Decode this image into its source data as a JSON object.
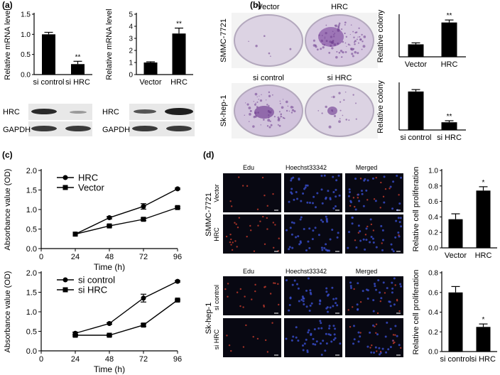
{
  "panel_labels": [
    "(a)",
    "(b)",
    "(c)",
    "(d)"
  ],
  "colors": {
    "bar": "#000000",
    "dish": "#d9cfe0",
    "stain": "#6b3b8c",
    "micro_bg": "#080812",
    "edu_dot": "#c0392b",
    "hoechst_dot": "#3a4fd0"
  },
  "blot": {
    "left_labels": [
      "HRC",
      "GAPDH"
    ],
    "right_labels": [
      "HRC",
      "GAPDH"
    ]
  },
  "colony_images": {
    "top_row_label": "SMMC-7721",
    "bottom_row_label": "Sk-hep-1",
    "top_dish_labels": [
      "Vector",
      "HRC"
    ],
    "bottom_dish_labels": [
      "si control",
      "si HRC"
    ]
  },
  "micro": {
    "column_headers": [
      "Edu",
      "Hoechst33342",
      "Merged"
    ],
    "group_top": "SMMC-7721",
    "group_bottom": "Sk-hep-1",
    "row_labels_top": [
      "Vector",
      "HRC"
    ],
    "row_labels_bottom": [
      "si control",
      "si HRC"
    ]
  },
  "chart_data": [
    {
      "id": "a_left",
      "type": "bar",
      "categories": [
        "si control",
        "si HRC"
      ],
      "values": [
        1.0,
        0.26
      ],
      "errors": [
        0.05,
        0.07
      ],
      "ylabel": "Relative mRNA level",
      "ylim": [
        0,
        1.5
      ],
      "yticks": [
        "0.0",
        "0.5",
        "1.0",
        "1.5"
      ],
      "significance": [
        "",
        "**"
      ]
    },
    {
      "id": "a_right",
      "type": "bar",
      "categories": [
        "Vector",
        "HRC"
      ],
      "values": [
        1.0,
        3.4
      ],
      "errors": [
        0.06,
        0.45
      ],
      "ylabel": "Relative mRNA level",
      "ylim": [
        0,
        5
      ],
      "yticks": [
        "0",
        "1",
        "2",
        "3",
        "4",
        "5"
      ],
      "significance": [
        "",
        "**"
      ]
    },
    {
      "id": "b_top",
      "type": "bar",
      "categories": [
        "Vector",
        "HRC"
      ],
      "values": [
        1.0,
        2.75
      ],
      "errors": [
        0.12,
        0.2
      ],
      "ylabel": "Relative colony",
      "ylim": [
        0,
        3.3
      ],
      "significance": [
        "",
        "**"
      ]
    },
    {
      "id": "b_bottom",
      "type": "bar",
      "categories": [
        "si control",
        "si HRC"
      ],
      "values": [
        1.0,
        0.2
      ],
      "errors": [
        0.05,
        0.04
      ],
      "ylabel": "Relative colony",
      "ylim": [
        0,
        1.2
      ],
      "significance": [
        "",
        "**"
      ]
    },
    {
      "id": "c_top",
      "type": "line",
      "x": [
        24,
        48,
        72,
        96
      ],
      "xticks": [
        "0",
        "24",
        "48",
        "72",
        "96"
      ],
      "xlim": [
        0,
        96
      ],
      "yticks": [
        "0.0",
        "0.5",
        "1.0",
        "1.5",
        "2.0"
      ],
      "ylim": [
        0,
        2
      ],
      "xlabel": "Time (h)",
      "ylabel": "Absorbance value (OD)",
      "series": [
        {
          "name": "HRC",
          "marker": "circle",
          "values": [
            0.37,
            0.79,
            1.08,
            1.53
          ],
          "errors": [
            0,
            0.03,
            0.07,
            0.02
          ]
        },
        {
          "name": "Vector",
          "marker": "square",
          "values": [
            0.37,
            0.58,
            0.75,
            1.05
          ],
          "errors": [
            0,
            0.02,
            0.03,
            0.02
          ]
        }
      ]
    },
    {
      "id": "c_bottom",
      "type": "line",
      "x": [
        24,
        48,
        72,
        96
      ],
      "xticks": [
        "0",
        "24",
        "48",
        "72",
        "96"
      ],
      "xlim": [
        0,
        96
      ],
      "yticks": [
        "0.0",
        "0.5",
        "1.0",
        "1.5",
        "2.0"
      ],
      "ylim": [
        0,
        2
      ],
      "xlabel": "Time (h)",
      "ylabel": "Absorbance value (OD)",
      "series": [
        {
          "name": "si control",
          "marker": "circle",
          "values": [
            0.45,
            0.7,
            1.35,
            1.78
          ],
          "errors": [
            0.03,
            0.02,
            0.1,
            0.02
          ]
        },
        {
          "name": "si HRC",
          "marker": "square",
          "values": [
            0.4,
            0.4,
            0.66,
            1.3
          ],
          "errors": [
            0.02,
            0.02,
            0.03,
            0.02
          ]
        }
      ]
    },
    {
      "id": "d_top",
      "type": "bar",
      "categories": [
        "Vector",
        "HRC"
      ],
      "values": [
        0.37,
        0.74
      ],
      "errors": [
        0.07,
        0.05
      ],
      "ylabel": "Relative cell proliferation",
      "ylim": [
        0,
        1.0
      ],
      "yticks": [
        "0.0",
        "0.2",
        "0.4",
        "0.6",
        "0.8",
        "1.0"
      ],
      "significance": [
        "",
        "*"
      ]
    },
    {
      "id": "d_bottom",
      "type": "bar",
      "categories": [
        "si control",
        "si HRC"
      ],
      "values": [
        0.6,
        0.25
      ],
      "errors": [
        0.06,
        0.03
      ],
      "ylabel": "Relative cell proliferation",
      "ylim": [
        0,
        0.8
      ],
      "yticks": [
        "0.0",
        "0.2",
        "0.4",
        "0.6",
        "0.8"
      ],
      "significance": [
        "",
        "*"
      ]
    }
  ]
}
